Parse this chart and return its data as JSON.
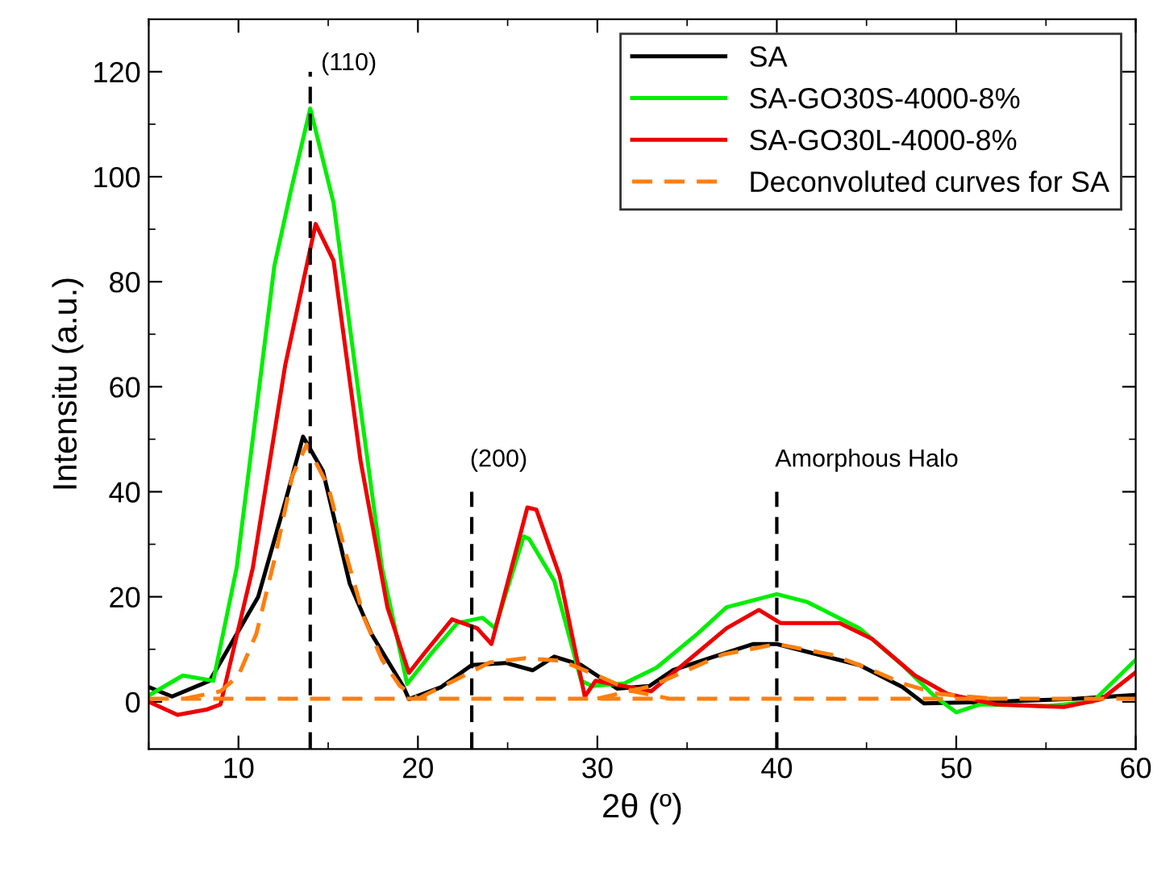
{
  "chart_data": {
    "type": "line",
    "xlabel": "2θ (º)",
    "ylabel": "Intensitu (a.u.)",
    "xlim": [
      5,
      60
    ],
    "ylim": [
      -9,
      130
    ],
    "xticks": [
      10,
      20,
      30,
      40,
      50,
      60
    ],
    "yticks": [
      0,
      20,
      40,
      60,
      80,
      100,
      120
    ],
    "grid": false,
    "legend": "top right",
    "marker": "none",
    "series": [
      {
        "name": "SA",
        "color": "#000000",
        "line_style": "solid",
        "x": [
          5,
          6.3,
          8.4,
          11.1,
          12.6,
          13.6,
          14.7,
          16.2,
          17.4,
          19.2,
          19.5,
          21.3,
          23,
          24.9,
          26.4,
          27.6,
          29.1,
          31.1,
          32.9,
          34.2,
          36.5,
          38.7,
          40,
          42.3,
          44.6,
          47,
          48.2,
          52.2,
          56.7,
          60
        ],
        "values": [
          2.8,
          1,
          4,
          20,
          38,
          50.5,
          44,
          22.5,
          13,
          2.8,
          0.5,
          2.8,
          7,
          7.4,
          6,
          8.6,
          7,
          2.5,
          3,
          6,
          8.6,
          11,
          11,
          9,
          7,
          2.8,
          -0.3,
          0,
          0.6,
          1.3
        ]
      },
      {
        "name": "SA-GO30S-4000-8%",
        "color": "#00ee00",
        "line_style": "solid",
        "x": [
          5,
          6.9,
          8.6,
          9.9,
          12,
          12.9,
          14,
          15.3,
          16.8,
          18,
          19.4,
          20.7,
          22.2,
          23.6,
          24.3,
          25.9,
          26.2,
          27.6,
          29.1,
          29.7,
          31.5,
          33.3,
          35.6,
          37.2,
          40,
          41.7,
          44.6,
          47,
          48.8,
          50,
          51.3,
          55.1,
          57.6,
          60
        ],
        "values": [
          1.2,
          5,
          4,
          25.5,
          83,
          97,
          113,
          95,
          56,
          25.5,
          3.4,
          9,
          15,
          16,
          14,
          31.5,
          31,
          23,
          4,
          3,
          3.5,
          6.5,
          13,
          18,
          20.5,
          19,
          14,
          7,
          1,
          -2,
          -0.5,
          -0.8,
          0,
          8
        ]
      },
      {
        "name": "SA-GO30L-4000-8%",
        "color": "#ee0000",
        "line_style": "solid",
        "x": [
          5,
          6.6,
          8.2,
          9,
          10.8,
          12.6,
          14.3,
          15.3,
          16.8,
          18.3,
          19.5,
          20.3,
          21.9,
          23.3,
          24.1,
          26.1,
          26.6,
          27.9,
          29.3,
          29.9,
          33,
          35.1,
          37.2,
          39,
          40.2,
          41.7,
          43.5,
          45.3,
          47.7,
          49.5,
          52.2,
          56,
          58.1,
          60
        ],
        "values": [
          0,
          -2.5,
          -1.5,
          -0.5,
          25.5,
          64,
          91,
          84,
          46,
          18,
          5.5,
          9,
          15.7,
          14,
          11,
          37,
          36.6,
          24,
          1,
          4,
          2,
          8,
          14,
          17.5,
          15,
          15,
          15,
          12,
          5,
          1.5,
          -0.5,
          -1,
          0.5,
          5.6
        ]
      },
      {
        "name": "Deconvoluted curves for SA",
        "color": "#ff7f0e",
        "line_style": "dashed",
        "x": [
          5,
          60,
          null,
          7,
          9,
          10,
          11,
          12,
          13,
          13.8,
          15,
          16,
          17,
          18,
          19,
          20,
          null,
          20,
          22,
          24,
          26,
          28,
          30,
          32,
          34,
          null,
          30,
          33,
          35,
          37,
          40,
          43,
          45,
          47,
          49,
          52
        ],
        "values": [
          0.6,
          0.6,
          null,
          0.6,
          2,
          5,
          13,
          27,
          43,
          49,
          41,
          28,
          16,
          8,
          3,
          0.6,
          null,
          0.6,
          4,
          7.5,
          8.3,
          7.8,
          5,
          2,
          0.6,
          null,
          0.6,
          3,
          6,
          9,
          11,
          9,
          6.5,
          3.5,
          1.5,
          0.6
        ]
      }
    ],
    "ref_lines": [
      {
        "axis": "x",
        "value": 14,
        "color": "#000000",
        "line_style": "dashed"
      },
      {
        "axis": "x",
        "value": 23,
        "color": "#000000",
        "line_style": "dashed"
      },
      {
        "axis": "x",
        "value": 40,
        "color": "#000000",
        "line_style": "dashed"
      }
    ],
    "annotations": [
      {
        "text": "(110)",
        "x": 14,
        "y": 120
      },
      {
        "text": "(200)",
        "x": 23,
        "y": 40
      },
      {
        "text": "Amorphous Halo",
        "x": 40,
        "y": 40
      }
    ]
  }
}
